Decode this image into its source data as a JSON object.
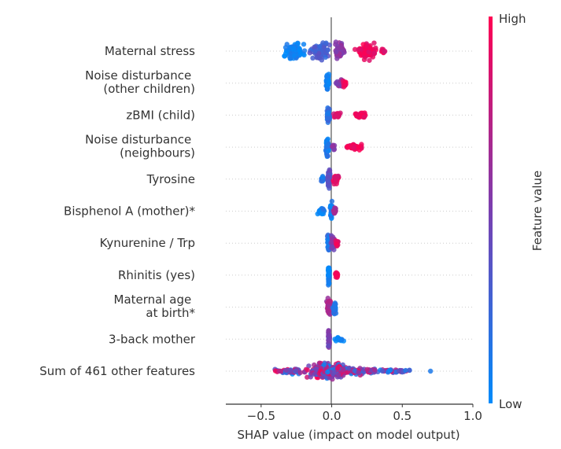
{
  "chart_data": {
    "type": "scatter",
    "subtype": "shap-beeswarm",
    "xlabel": "SHAP value (impact on model output)",
    "xlim": [
      -0.75,
      1.0
    ],
    "xticks": [
      -0.5,
      0.0,
      0.5,
      1.0
    ],
    "xtick_labels": [
      "−0.5",
      "0.0",
      "0.5",
      "1.0"
    ],
    "grid": false,
    "colorbar": {
      "label": "Feature value",
      "high_label": "High",
      "low_label": "Low",
      "high_color": "#ff0052",
      "low_color": "#008bfb"
    },
    "features": [
      {
        "label": [
          "Maternal  stress"
        ],
        "clusters": [
          {
            "x": -0.26,
            "spread": 0.07,
            "height": 1.0,
            "color": 0.05,
            "n": 70
          },
          {
            "x": -0.08,
            "spread": 0.06,
            "height": 1.0,
            "color": 0.3,
            "n": 60
          },
          {
            "x": 0.06,
            "spread": 0.04,
            "height": 1.0,
            "color": 0.55,
            "n": 50
          },
          {
            "x": 0.25,
            "spread": 0.07,
            "height": 1.0,
            "color": 0.95,
            "n": 70
          },
          {
            "x": 0.37,
            "spread": 0.02,
            "height": 0.3,
            "color": 0.9,
            "n": 8
          }
        ]
      },
      {
        "label": [
          "Noise disturbance ",
          "(other children)"
        ],
        "clusters": [
          {
            "x": -0.03,
            "spread": 0.01,
            "height": 1.0,
            "color": 0.05,
            "n": 70
          },
          {
            "x": 0.05,
            "spread": 0.03,
            "height": 0.5,
            "color": 0.55,
            "n": 25
          },
          {
            "x": 0.09,
            "spread": 0.015,
            "height": 0.45,
            "color": 0.95,
            "n": 15
          }
        ]
      },
      {
        "label": [
          "zBMI (child)"
        ],
        "clusters": [
          {
            "x": -0.025,
            "spread": 0.01,
            "height": 1.0,
            "color": 0.2,
            "n": 70
          },
          {
            "x": 0.04,
            "spread": 0.03,
            "height": 0.3,
            "color": 0.9,
            "n": 20
          },
          {
            "x": 0.2,
            "spread": 0.04,
            "height": 0.3,
            "color": 0.95,
            "n": 40
          }
        ]
      },
      {
        "label": [
          "Noise disturbance ",
          "(neighbours)"
        ],
        "clusters": [
          {
            "x": -0.03,
            "spread": 0.01,
            "height": 1.0,
            "color": 0.1,
            "n": 70
          },
          {
            "x": 0.01,
            "spread": 0.01,
            "height": 0.3,
            "color": 0.55,
            "n": 10
          },
          {
            "x": 0.16,
            "spread": 0.06,
            "height": 0.3,
            "color": 0.95,
            "n": 45
          }
        ]
      },
      {
        "label": [
          "Tyrosine"
        ],
        "clusters": [
          {
            "x": -0.06,
            "spread": 0.015,
            "height": 0.3,
            "color": 0.1,
            "n": 12
          },
          {
            "x": -0.02,
            "spread": 0.01,
            "height": 1.0,
            "color": 0.35,
            "n": 60
          },
          {
            "x": 0.03,
            "spread": 0.02,
            "height": 0.6,
            "color": 0.9,
            "n": 30
          }
        ]
      },
      {
        "label": [
          "Bisphenol A (mother)*"
        ],
        "clusters": [
          {
            "x": -0.07,
            "spread": 0.025,
            "height": 0.4,
            "color": 0.08,
            "n": 25
          },
          {
            "x": 0.0,
            "spread": 0.01,
            "height": 1.0,
            "color": 0.1,
            "n": 45
          },
          {
            "x": 0.02,
            "spread": 0.01,
            "height": 0.5,
            "color": 0.65,
            "n": 15
          }
        ]
      },
      {
        "label": [
          "Kynurenine / Trp"
        ],
        "clusters": [
          {
            "x": -0.02,
            "spread": 0.01,
            "height": 1.0,
            "color": 0.15,
            "n": 50
          },
          {
            "x": 0.01,
            "spread": 0.015,
            "height": 0.9,
            "color": 0.5,
            "n": 40
          },
          {
            "x": 0.035,
            "spread": 0.01,
            "height": 0.5,
            "color": 0.9,
            "n": 15
          }
        ]
      },
      {
        "label": [
          "Rhinitis (yes)"
        ],
        "clusters": [
          {
            "x": -0.02,
            "spread": 0.005,
            "height": 1.0,
            "color": 0.05,
            "n": 60
          },
          {
            "x": 0.035,
            "spread": 0.01,
            "height": 0.45,
            "color": 0.95,
            "n": 18
          }
        ]
      },
      {
        "label": [
          "Maternal age ",
          "at birth*"
        ],
        "clusters": [
          {
            "x": -0.02,
            "spread": 0.015,
            "height": 1.0,
            "color": 0.7,
            "n": 60
          },
          {
            "x": 0.02,
            "spread": 0.01,
            "height": 0.9,
            "color": 0.15,
            "n": 35
          }
        ]
      },
      {
        "label": [
          "3-back mother"
        ],
        "clusters": [
          {
            "x": -0.02,
            "spread": 0.005,
            "height": 1.0,
            "color": 0.5,
            "n": 40
          },
          {
            "x": 0.05,
            "spread": 0.03,
            "height": 0.25,
            "color": 0.05,
            "n": 20
          }
        ]
      },
      {
        "label": [
          "Sum of 461 other features"
        ],
        "clusters": [
          {
            "x": -0.03,
            "spread": 0.12,
            "height": 1.0,
            "color": -1,
            "n": 260
          },
          {
            "x": 0.15,
            "spread": 0.2,
            "height": 0.45,
            "color": -1,
            "n": 120
          },
          {
            "x": -0.3,
            "spread": 0.12,
            "height": 0.3,
            "color": -1,
            "n": 60
          },
          {
            "x": 0.45,
            "spread": 0.1,
            "height": 0.2,
            "color": -1,
            "n": 40
          },
          {
            "x": 0.7,
            "spread": 0.0,
            "height": 0.0,
            "color": 0.2,
            "n": 1
          }
        ]
      }
    ]
  }
}
